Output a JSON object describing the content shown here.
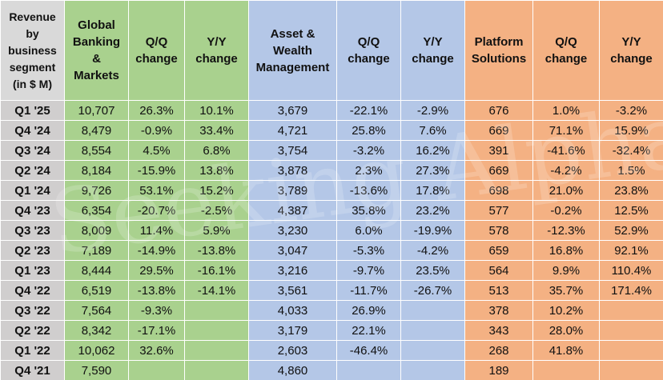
{
  "table": {
    "headers": [
      "Revenue by business segment (in $ M)",
      "Global Banking & Markets",
      "Q/Q change",
      "Y/Y change",
      "Asset & Wealth Management",
      "Q/Q change",
      "Y/Y change",
      "Platform Solutions",
      "Q/Q change",
      "Y/Y change"
    ],
    "rows": [
      [
        "Q1 '25",
        "10,707",
        "26.3%",
        "10.1%",
        "3,679",
        "-22.1%",
        "-2.9%",
        "676",
        "1.0%",
        "-3.2%"
      ],
      [
        "Q4 '24",
        "8,479",
        "-0.9%",
        "33.4%",
        "4,721",
        "25.8%",
        "7.6%",
        "669",
        "71.1%",
        "15.9%"
      ],
      [
        "Q3 '24",
        "8,554",
        "4.5%",
        "6.8%",
        "3,754",
        "-3.2%",
        "16.2%",
        "391",
        "-41.6%",
        "-32.4%"
      ],
      [
        "Q2 '24",
        "8,184",
        "-15.9%",
        "13.8%",
        "3,878",
        "2.3%",
        "27.3%",
        "669",
        "-4.2%",
        "1.5%"
      ],
      [
        "Q1 '24",
        "9,726",
        "53.1%",
        "15.2%",
        "3,789",
        "-13.6%",
        "17.8%",
        "698",
        "21.0%",
        "23.8%"
      ],
      [
        "Q4 '23",
        "6,354",
        "-20.7%",
        "-2.5%",
        "4,387",
        "35.8%",
        "23.2%",
        "577",
        "-0.2%",
        "12.5%"
      ],
      [
        "Q3 '23",
        "8,009",
        "11.4%",
        "5.9%",
        "3,230",
        "6.0%",
        "-19.9%",
        "578",
        "-12.3%",
        "52.9%"
      ],
      [
        "Q2 '23",
        "7,189",
        "-14.9%",
        "-13.8%",
        "3,047",
        "-5.3%",
        "-4.2%",
        "659",
        "16.8%",
        "92.1%"
      ],
      [
        "Q1 '23",
        "8,444",
        "29.5%",
        "-16.1%",
        "3,216",
        "-9.7%",
        "23.5%",
        "564",
        "9.9%",
        "110.4%"
      ],
      [
        "Q4 '22",
        "6,519",
        "-13.8%",
        "-14.1%",
        "3,561",
        "-11.7%",
        "-26.7%",
        "513",
        "35.7%",
        "171.4%"
      ],
      [
        "Q3 '22",
        "7,564",
        "-9.3%",
        null,
        "4,033",
        "26.9%",
        null,
        "378",
        "10.2%",
        null
      ],
      [
        "Q2 '22",
        "8,342",
        "-17.1%",
        null,
        "3,179",
        "22.1%",
        null,
        "343",
        "28.0%",
        null
      ],
      [
        "Q1 '22",
        "10,062",
        "32.6%",
        null,
        "2,603",
        "-46.4%",
        null,
        "268",
        "41.8%",
        null
      ],
      [
        "Q4 '21",
        "7,590",
        null,
        null,
        "4,860",
        null,
        null,
        "189",
        null,
        null
      ]
    ],
    "watermark": "Seeking Alpha"
  }
}
